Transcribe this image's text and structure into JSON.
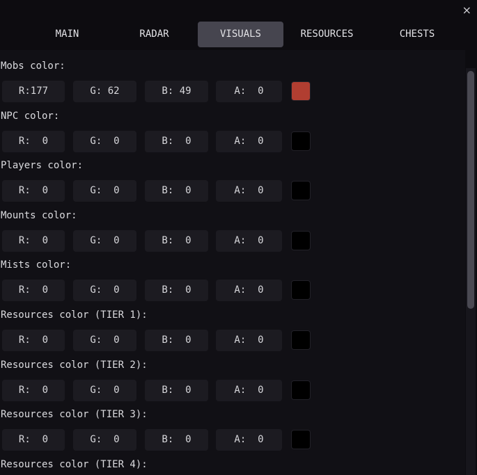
{
  "window": {
    "close_icon": "close-icon",
    "close_glyph": "×"
  },
  "tabs": [
    {
      "label": "MAIN",
      "active": false
    },
    {
      "label": "RADAR",
      "active": false
    },
    {
      "label": "VISUALS",
      "active": true
    },
    {
      "label": "RESOURCES",
      "active": false
    },
    {
      "label": "CHESTS",
      "active": false
    }
  ],
  "colors": {
    "active_tab": "#46454f",
    "background": "#111015",
    "field": "#1c1b21"
  },
  "settings": [
    {
      "label": "Mobs color:",
      "r": "R:177",
      "g": "G: 62",
      "b": "B: 49",
      "a": "A:  0",
      "swatch": "#b13e31"
    },
    {
      "label": "NPC color:",
      "r": "R:  0",
      "g": "G:  0",
      "b": "B:  0",
      "a": "A:  0",
      "swatch": "#000000"
    },
    {
      "label": "Players color:",
      "r": "R:  0",
      "g": "G:  0",
      "b": "B:  0",
      "a": "A:  0",
      "swatch": "#000000"
    },
    {
      "label": "Mounts color:",
      "r": "R:  0",
      "g": "G:  0",
      "b": "B:  0",
      "a": "A:  0",
      "swatch": "#000000"
    },
    {
      "label": "Mists color:",
      "r": "R:  0",
      "g": "G:  0",
      "b": "B:  0",
      "a": "A:  0",
      "swatch": "#000000"
    },
    {
      "label": "Resources color (TIER 1):",
      "r": "R:  0",
      "g": "G:  0",
      "b": "B:  0",
      "a": "A:  0",
      "swatch": "#000000"
    },
    {
      "label": "Resources color (TIER 2):",
      "r": "R:  0",
      "g": "G:  0",
      "b": "B:  0",
      "a": "A:  0",
      "swatch": "#000000"
    },
    {
      "label": "Resources color (TIER 3):",
      "r": "R:  0",
      "g": "G:  0",
      "b": "B:  0",
      "a": "A:  0",
      "swatch": "#000000"
    },
    {
      "label": "Resources color (TIER 4):"
    }
  ]
}
